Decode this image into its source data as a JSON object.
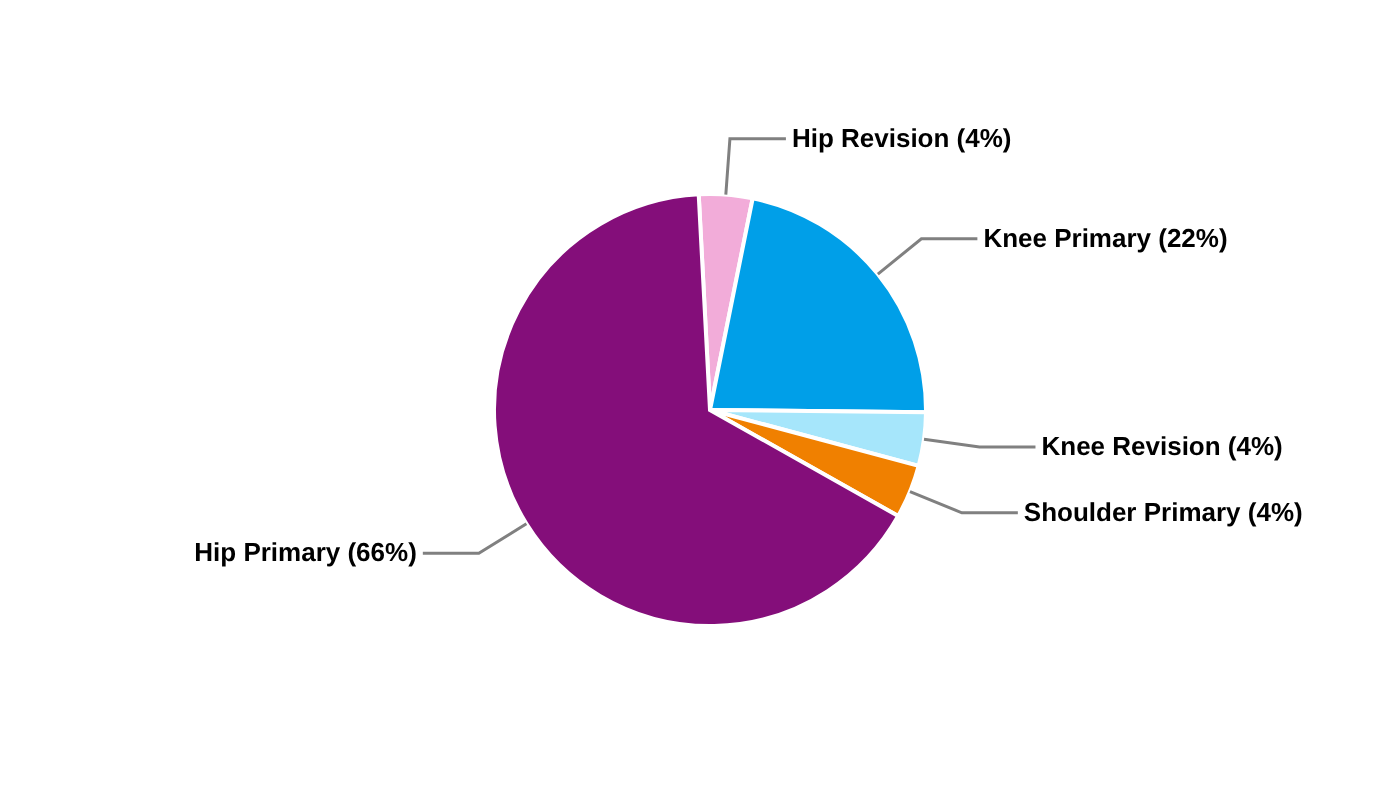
{
  "chart_data": {
    "type": "pie",
    "categories": [
      "Hip Revision (4%)",
      "Knee Primary (22%)",
      "Knee Revision (4%)",
      "Shoulder Primary (4%)",
      "Hip Primary (66%)"
    ],
    "values": [
      4,
      22,
      4,
      4,
      66
    ],
    "colors": [
      "#f2acd9",
      "#009fe8",
      "#a6e6fb",
      "#f08000",
      "#840e7a"
    ],
    "legend": false
  }
}
